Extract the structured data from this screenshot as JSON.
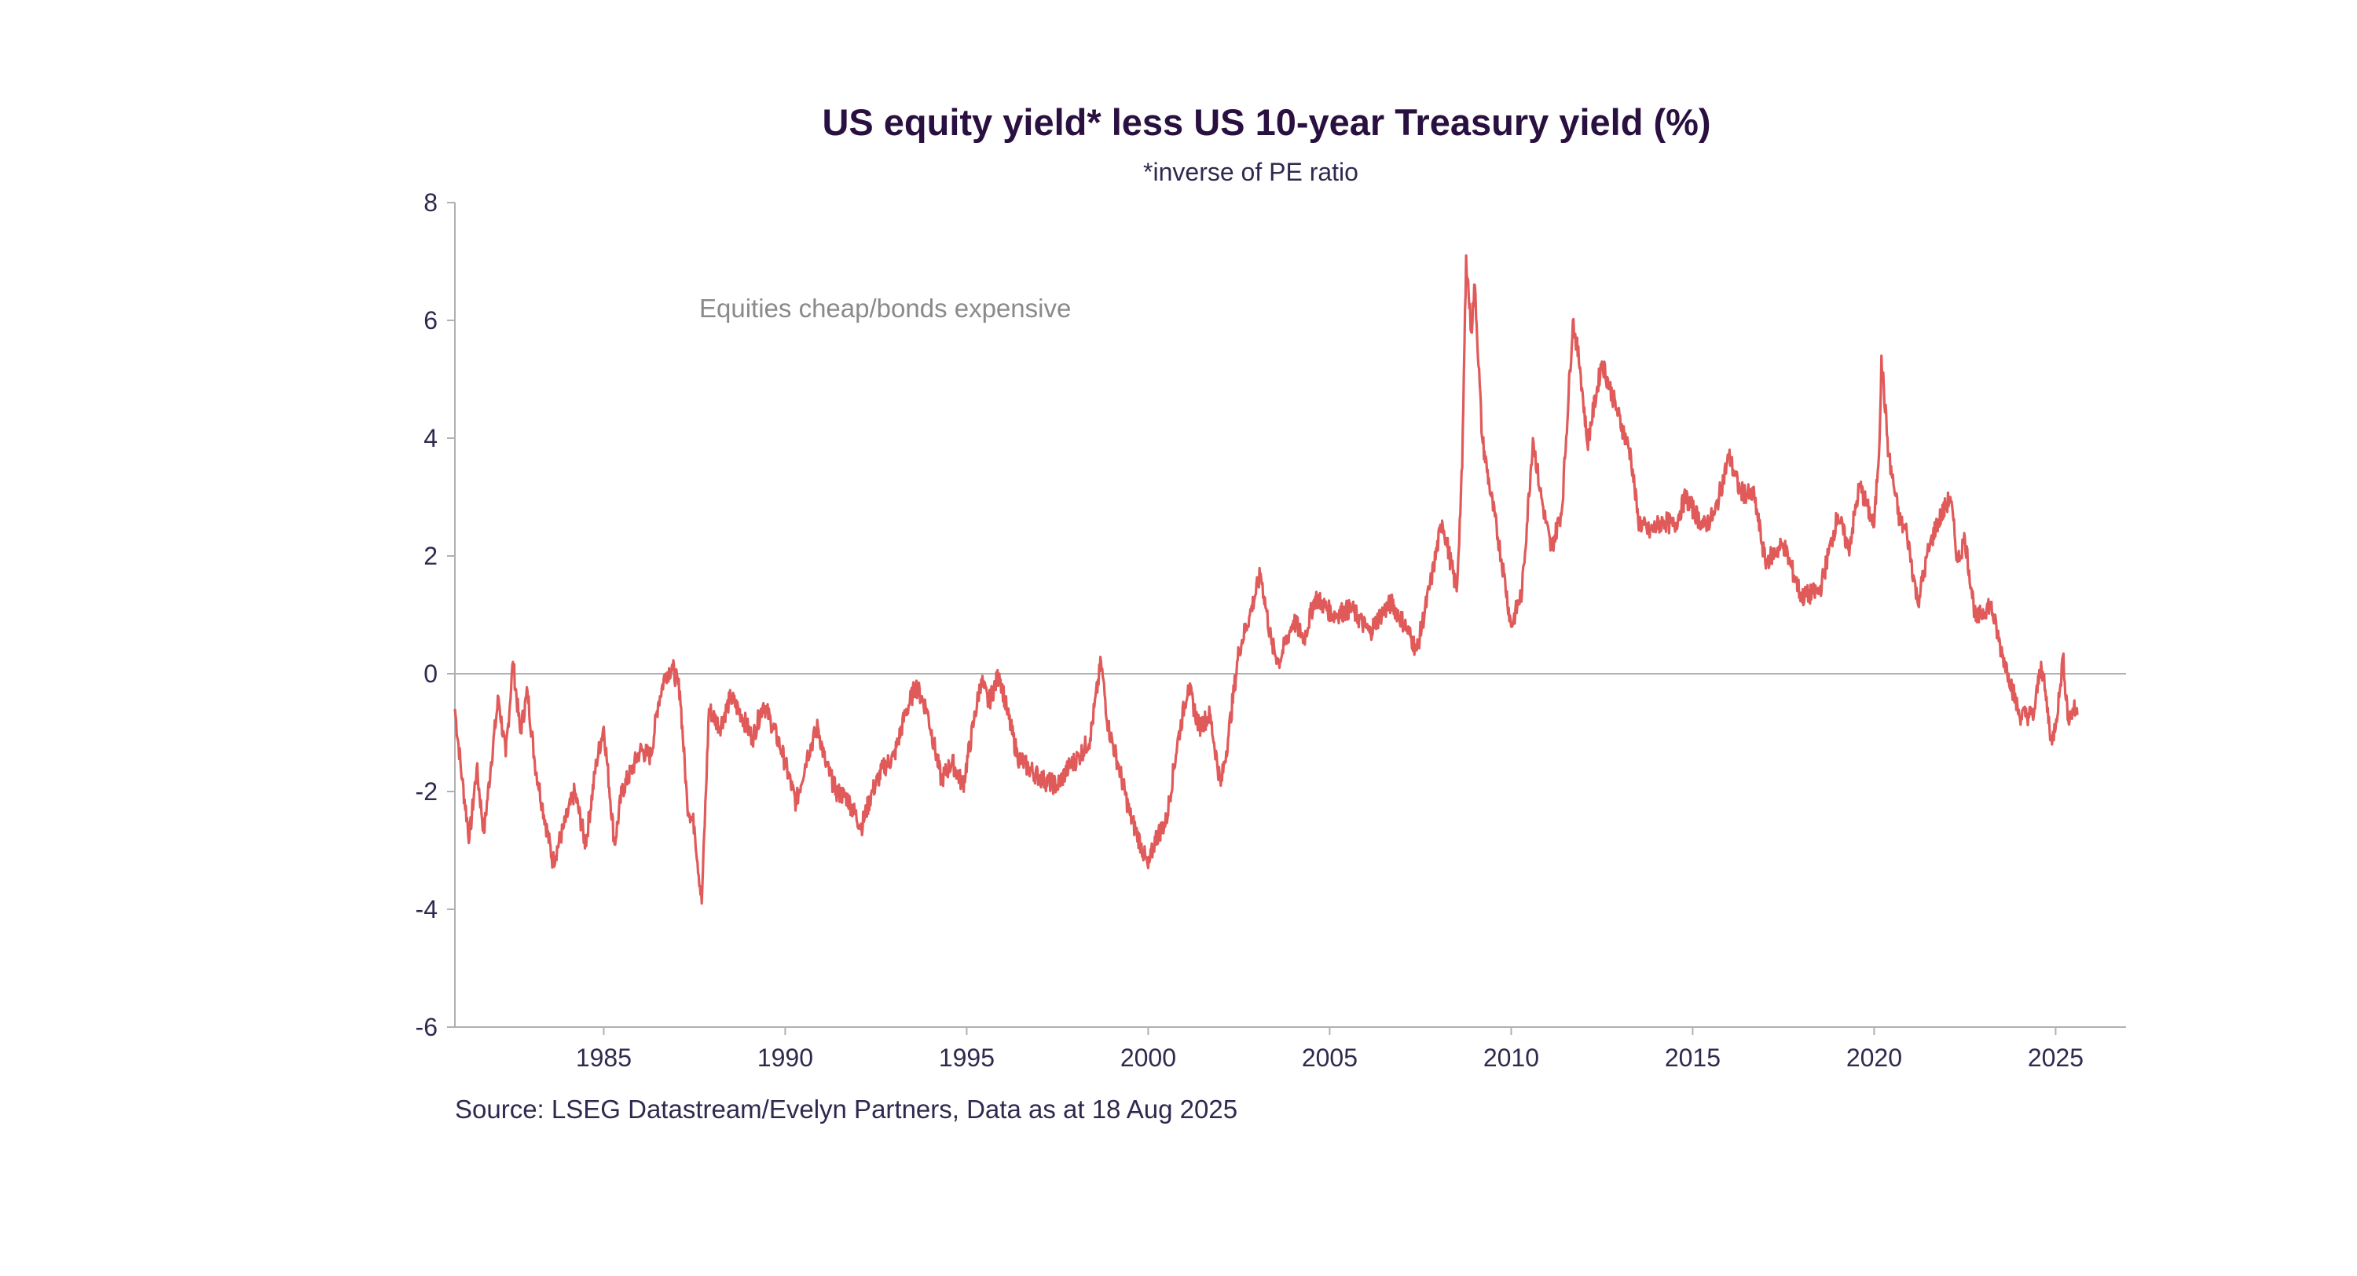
{
  "chart_data": {
    "type": "line",
    "title": "US equity yield* less US 10-year Treasury yield (%)",
    "subtitle": "*inverse of PE ratio",
    "annotation": "Equities cheap/bonds expensive",
    "source": "Source: LSEG Datastream/Evelyn Partners, Data as at 18 Aug 2025",
    "xlabel": "",
    "ylabel": "",
    "xlim": [
      1980.9,
      2027.0
    ],
    "ylim": [
      -6,
      8
    ],
    "x_ticks": [
      1985,
      1990,
      1995,
      2000,
      2005,
      2010,
      2015,
      2020,
      2025
    ],
    "x_tick_labels": [
      "1985",
      "1990",
      "1995",
      "2000",
      "2005",
      "2010",
      "2015",
      "2020",
      "2025"
    ],
    "y_ticks": [
      -6,
      -4,
      -2,
      0,
      2,
      4,
      6,
      8
    ],
    "y_tick_labels": [
      "-6",
      "-4",
      "-2",
      "0",
      "2",
      "4",
      "6",
      "8"
    ],
    "grid": false,
    "zero_line": true,
    "colors": {
      "line": "#e05a5a",
      "title": "#2a1040",
      "text": "#2e2a4f",
      "annotation": "#8a8a8a",
      "axis": "#b0b0b0"
    },
    "series": [
      {
        "x": [
          1980.9,
          1981.1,
          1981.3,
          1981.5,
          1981.7,
          1981.9,
          1982.1,
          1982.3,
          1982.5,
          1982.7,
          1982.9,
          1983.1,
          1983.3,
          1983.6,
          1983.9,
          1984.2,
          1984.5,
          1984.8,
          1985.0,
          1985.3,
          1985.5,
          1985.8,
          1986.0,
          1986.3,
          1986.5,
          1986.7,
          1986.9,
          1987.1,
          1987.3,
          1987.5,
          1987.7,
          1987.9,
          1988.2,
          1988.5,
          1988.8,
          1989.1,
          1989.4,
          1989.6,
          1989.9,
          1990.3,
          1990.6,
          1990.9,
          1991.1,
          1991.4,
          1991.7,
          1992.1,
          1992.4,
          1992.7,
          1993.0,
          1993.3,
          1993.6,
          1993.9,
          1994.3,
          1994.6,
          1994.9,
          1995.2,
          1995.4,
          1995.6,
          1995.9,
          1996.1,
          1996.4,
          1996.7,
          1997.1,
          1997.5,
          1997.8,
          1998.1,
          1998.4,
          1998.7,
          1998.9,
          1999.2,
          1999.5,
          1999.8,
          2000.0,
          2000.2,
          2000.5,
          2000.8,
          2001.1,
          2001.4,
          2001.7,
          2002.0,
          2002.2,
          2002.5,
          2002.8,
          2003.1,
          2003.4,
          2003.6,
          2004.0,
          2004.3,
          2004.6,
          2005.1,
          2005.6,
          2006.1,
          2006.4,
          2006.7,
          2007.1,
          2007.4,
          2007.8,
          2008.1,
          2008.5,
          2008.65,
          2008.76,
          2008.9,
          2009.0,
          2009.2,
          2009.4,
          2009.8,
          2010.0,
          2010.3,
          2010.6,
          2010.8,
          2011.1,
          2011.4,
          2011.7,
          2011.9,
          2012.1,
          2012.5,
          2012.9,
          2013.3,
          2013.5,
          2013.8,
          2014.2,
          2014.5,
          2014.8,
          2015.3,
          2015.6,
          2016.0,
          2016.3,
          2016.7,
          2017.0,
          2017.5,
          2018.0,
          2018.5,
          2019.0,
          2019.3,
          2019.6,
          2020.0,
          2020.15,
          2020.2,
          2020.4,
          2020.7,
          2020.9,
          2021.2,
          2021.5,
          2021.7,
          2022.1,
          2022.3,
          2022.5,
          2022.8,
          2023.2,
          2023.5,
          2023.7,
          2024.0,
          2024.4,
          2024.6,
          2024.9,
          2025.1,
          2025.2,
          2025.35,
          2025.5,
          2025.6
        ],
        "values": [
          -0.6,
          -1.8,
          -2.8,
          -1.6,
          -2.7,
          -1.5,
          -0.4,
          -1.4,
          0.2,
          -1.0,
          -0.3,
          -1.5,
          -2.2,
          -3.2,
          -2.6,
          -2.0,
          -2.9,
          -1.5,
          -0.9,
          -2.9,
          -2.0,
          -1.6,
          -1.3,
          -1.4,
          -0.5,
          0.0,
          0.1,
          -0.3,
          -2.2,
          -2.6,
          -3.9,
          -0.6,
          -0.9,
          -0.4,
          -0.7,
          -1.1,
          -0.5,
          -0.8,
          -1.3,
          -2.2,
          -1.4,
          -0.9,
          -1.5,
          -2.0,
          -2.1,
          -2.6,
          -2.0,
          -1.6,
          -1.4,
          -0.7,
          -0.2,
          -0.6,
          -1.8,
          -1.5,
          -1.9,
          -0.8,
          -0.1,
          -0.5,
          0.0,
          -0.6,
          -1.4,
          -1.6,
          -1.8,
          -1.9,
          -1.6,
          -1.4,
          -1.1,
          0.2,
          -0.9,
          -1.6,
          -2.4,
          -2.9,
          -3.3,
          -2.8,
          -2.5,
          -1.2,
          -0.2,
          -0.9,
          -0.7,
          -1.9,
          -1.1,
          0.4,
          1.0,
          1.7,
          0.5,
          0.2,
          0.9,
          0.6,
          1.3,
          1.0,
          1.1,
          0.7,
          1.0,
          1.2,
          0.8,
          0.4,
          1.6,
          2.6,
          1.4,
          3.5,
          7.1,
          5.8,
          6.6,
          4.0,
          3.2,
          1.7,
          0.8,
          1.4,
          4.0,
          3.1,
          2.1,
          2.8,
          6.0,
          5.2,
          3.9,
          5.3,
          4.5,
          3.7,
          2.6,
          2.4,
          2.6,
          2.5,
          3.0,
          2.5,
          2.7,
          3.7,
          3.1,
          3.0,
          1.9,
          2.2,
          1.3,
          1.4,
          2.7,
          2.1,
          3.2,
          2.5,
          4.0,
          5.4,
          3.7,
          2.6,
          2.4,
          1.2,
          2.1,
          2.5,
          3.0,
          1.9,
          2.3,
          0.9,
          1.2,
          0.4,
          0.0,
          -0.7,
          -0.7,
          0.2,
          -1.2,
          -0.4,
          0.3,
          -0.8,
          -0.6,
          -0.7
        ]
      }
    ]
  }
}
